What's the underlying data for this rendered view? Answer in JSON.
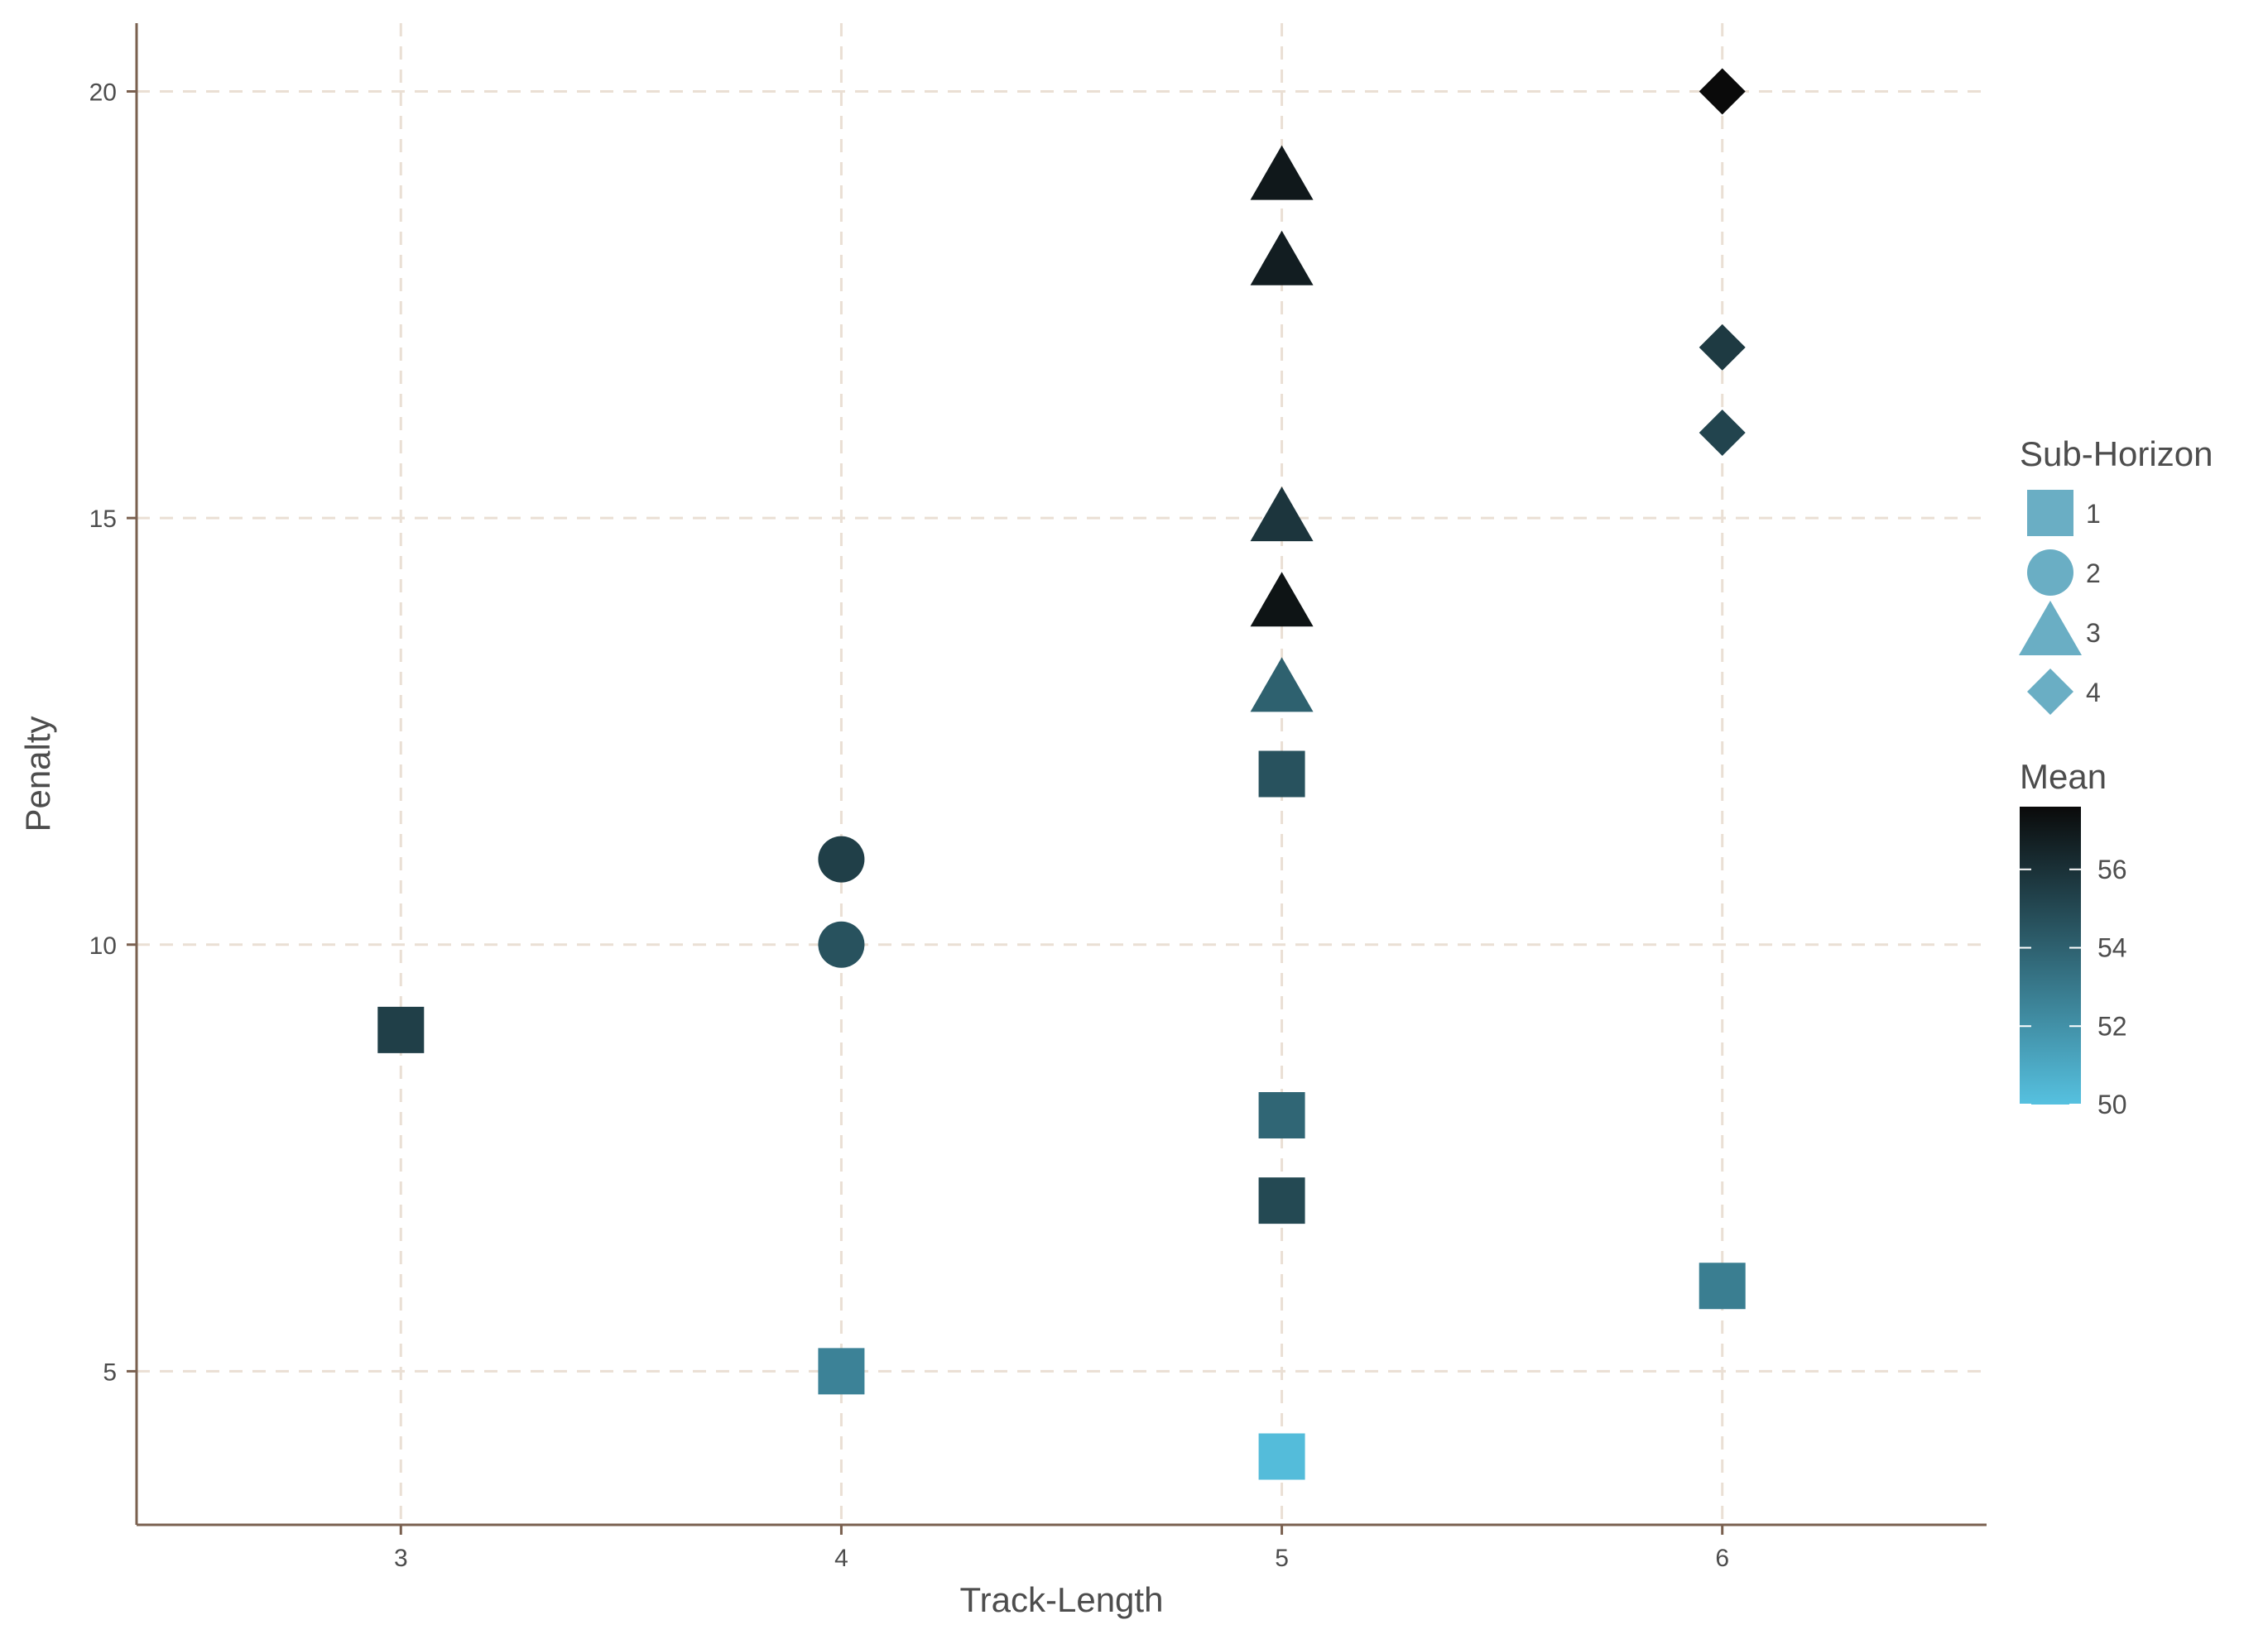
{
  "chart_data": {
    "type": "scatter",
    "title": "",
    "xlabel": "Track-Length",
    "ylabel": "Penalty",
    "xlim": [
      2.4,
      6.6
    ],
    "ylim": [
      3.2,
      20.8
    ],
    "xticks": [
      3,
      4,
      5,
      6
    ],
    "xtick_labels": [
      "3",
      "4",
      "5",
      "6"
    ],
    "yticks": [
      5,
      10,
      15,
      20
    ],
    "ytick_labels": [
      "5",
      "10",
      "15",
      "20"
    ],
    "grid": true,
    "legend_position": "right",
    "shape_legend": {
      "title": "Sub-Horizon",
      "color": "#6aaec4",
      "items": [
        {
          "label": "1",
          "shape": "square"
        },
        {
          "label": "2",
          "shape": "circle"
        },
        {
          "label": "3",
          "shape": "triangle"
        },
        {
          "label": "4",
          "shape": "diamond"
        }
      ]
    },
    "color_legend": {
      "title": "Mean",
      "min": 50,
      "max": 57.6,
      "ticks": [
        50,
        52,
        54,
        56
      ],
      "tick_labels": [
        "50",
        "52",
        "54",
        "56"
      ],
      "color_low": "#56c1e0",
      "color_high": "#0a0a0a"
    },
    "points": [
      {
        "x": 3,
        "y": 9,
        "sub_horizon": "1",
        "mean": 55.4
      },
      {
        "x": 4,
        "y": 5,
        "sub_horizon": "1",
        "mean": 52.6
      },
      {
        "x": 4,
        "y": 10,
        "sub_horizon": "2",
        "mean": 54.6
      },
      {
        "x": 4,
        "y": 11,
        "sub_horizon": "2",
        "mean": 55.4
      },
      {
        "x": 5,
        "y": 4,
        "sub_horizon": "1",
        "mean": 50.2
      },
      {
        "x": 5,
        "y": 7,
        "sub_horizon": "1",
        "mean": 55.0
      },
      {
        "x": 5,
        "y": 8,
        "sub_horizon": "1",
        "mean": 53.8
      },
      {
        "x": 5,
        "y": 12,
        "sub_horizon": "1",
        "mean": 54.6
      },
      {
        "x": 5,
        "y": 13,
        "sub_horizon": "3",
        "mean": 54.0
      },
      {
        "x": 5,
        "y": 14,
        "sub_horizon": "3",
        "mean": 57.2
      },
      {
        "x": 5,
        "y": 15,
        "sub_horizon": "3",
        "mean": 55.8
      },
      {
        "x": 5,
        "y": 18,
        "sub_horizon": "3",
        "mean": 56.8
      },
      {
        "x": 5,
        "y": 19,
        "sub_horizon": "3",
        "mean": 57.0
      },
      {
        "x": 6,
        "y": 6,
        "sub_horizon": "1",
        "mean": 52.8
      },
      {
        "x": 6,
        "y": 16,
        "sub_horizon": "4",
        "mean": 55.2
      },
      {
        "x": 6,
        "y": 17,
        "sub_horizon": "4",
        "mean": 55.6
      },
      {
        "x": 6,
        "y": 20,
        "sub_horizon": "4",
        "mean": 57.6
      }
    ]
  }
}
